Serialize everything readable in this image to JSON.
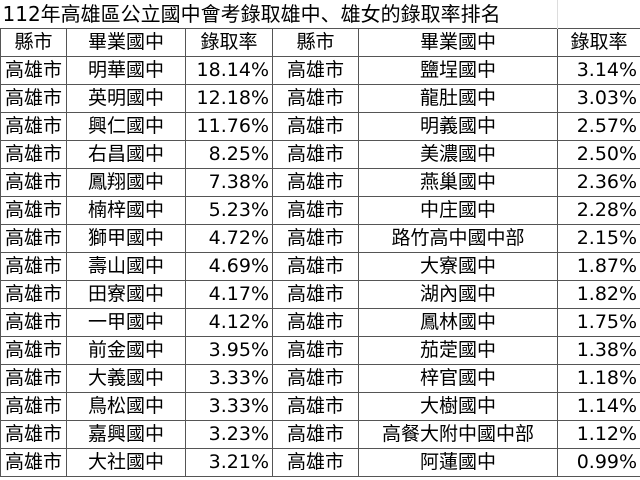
{
  "title": "112年高雄區公立國中會考錄取雄中、雄女的錄取率排名",
  "headers": [
    "縣市",
    "畢業國中",
    "錄取率",
    "縣市",
    "畢業國中",
    "錄取率"
  ],
  "rows": [
    [
      "高雄市",
      "明華國中",
      "18.14%",
      "高雄市",
      "鹽埕國中",
      "3.14%"
    ],
    [
      "高雄市",
      "英明國中",
      "12.18%",
      "高雄市",
      "龍肚國中",
      "3.03%"
    ],
    [
      "高雄市",
      "興仁國中",
      "11.76%",
      "高雄市",
      "明義國中",
      "2.57%"
    ],
    [
      "高雄市",
      "右昌國中",
      "8.25%",
      "高雄市",
      "美濃國中",
      "2.50%"
    ],
    [
      "高雄市",
      "鳳翔國中",
      "7.38%",
      "高雄市",
      "燕巢國中",
      "2.36%"
    ],
    [
      "高雄市",
      "楠梓國中",
      "5.23%",
      "高雄市",
      "中庄國中",
      "2.28%"
    ],
    [
      "高雄市",
      "獅甲國中",
      "4.72%",
      "高雄市",
      "路竹高中國中部",
      "2.15%"
    ],
    [
      "高雄市",
      "壽山國中",
      "4.69%",
      "高雄市",
      "大寮國中",
      "1.87%"
    ],
    [
      "高雄市",
      "田寮國中",
      "4.17%",
      "高雄市",
      "湖內國中",
      "1.82%"
    ],
    [
      "高雄市",
      "一甲國中",
      "4.12%",
      "高雄市",
      "鳳林國中",
      "1.75%"
    ],
    [
      "高雄市",
      "前金國中",
      "3.95%",
      "高雄市",
      "茄萣國中",
      "1.38%"
    ],
    [
      "高雄市",
      "大義國中",
      "3.33%",
      "高雄市",
      "梓官國中",
      "1.18%"
    ],
    [
      "高雄市",
      "鳥松國中",
      "3.33%",
      "高雄市",
      "大樹國中",
      "1.14%"
    ],
    [
      "高雄市",
      "嘉興國中",
      "3.23%",
      "高雄市",
      "高餐大附中國中部",
      "1.12%"
    ],
    [
      "高雄市",
      "大社國中",
      "3.21%",
      "高雄市",
      "阿蓮國中",
      "0.99%"
    ]
  ]
}
